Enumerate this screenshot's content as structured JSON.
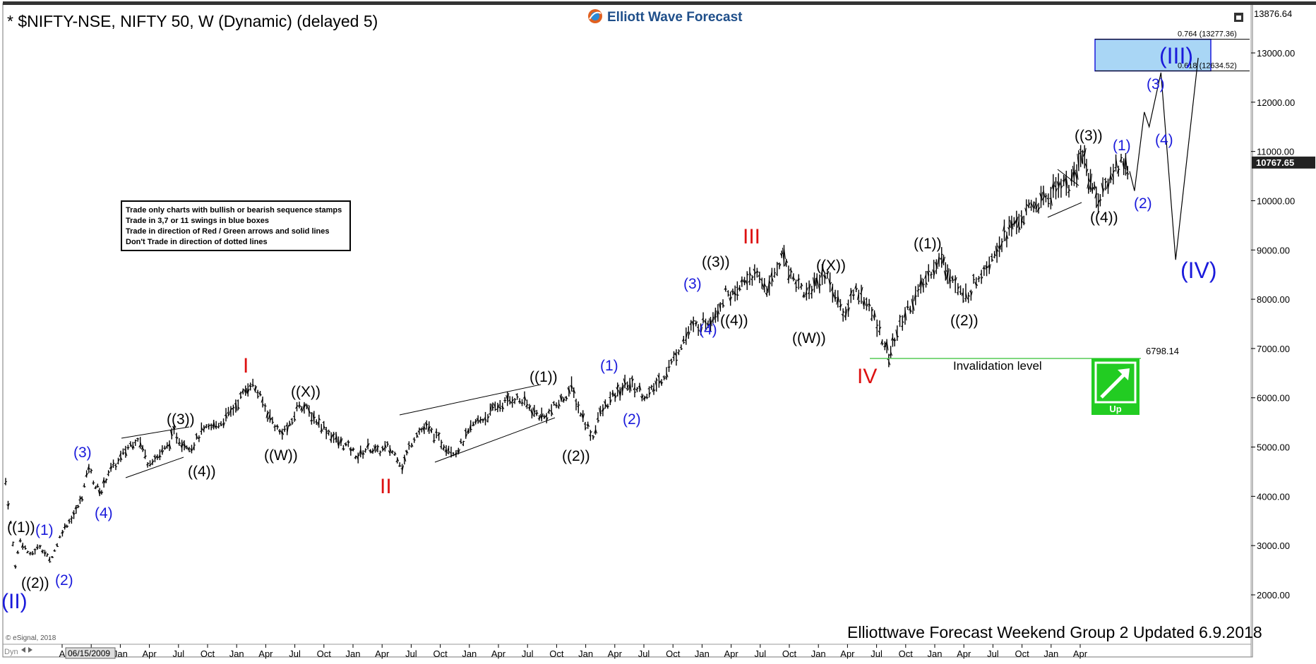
{
  "header": {
    "title": "* $NIFTY-NSE, NIFTY 50, W (Dynamic) (delayed 5)",
    "logo_text": "Elliott Wave Forecast",
    "top_price": "13876.64"
  },
  "legend_box": {
    "lines": [
      "Trade only charts with bullish or bearish sequence stamps",
      "Trade in 3,7 or 11 swings in blue boxes",
      "Trade in direction of Red / Green arrows and solid lines",
      "Don't Trade in direction of dotted lines"
    ]
  },
  "footer": {
    "update_text": "Elliottwave Forecast Weekend Group 2 Updated 6.9.2018",
    "copyright": "© eSignal, 2018",
    "cursor_date": "06/15/2009",
    "dyn": "Dyn"
  },
  "target_box": {
    "upper_label": "0.764 (13277.36)",
    "lower_label": "0.618 (12634.52)",
    "upper": 13277.36,
    "lower": 12634.52
  },
  "invalidation": {
    "value_label": "6798.14",
    "value": 6798.14,
    "text": "Invalidation level"
  },
  "up_arrow": {
    "label": "Up",
    "color": "#22cc22"
  },
  "last_price": {
    "label": "10767.65",
    "value": 10767.65
  },
  "colors": {
    "blue_wave": "#1a1adb",
    "red_wave": "#dd1111",
    "target_fill": "#a9d6f5",
    "invalidation_line": "#55cc55"
  },
  "chart_data": {
    "type": "line",
    "ylim": [
      1500,
      13876.64
    ],
    "yticks": [
      2000,
      3000,
      4000,
      5000,
      6000,
      7000,
      8000,
      9000,
      10000,
      11000,
      12000,
      13000
    ],
    "ytick_labels": [
      "2000.00",
      "3000.00",
      "4000.00",
      "5000.00",
      "6000.00",
      "7000.00",
      "8000.00",
      "9000.00",
      "10000.00",
      "11000.00",
      "12000.00",
      "13000.00"
    ],
    "x_ticks": [
      "A",
      "Oct",
      "Jan",
      "Apr",
      "Jul",
      "Oct",
      "Jan",
      "Apr",
      "Jul",
      "Oct",
      "Jan",
      "Apr",
      "Jul",
      "Oct",
      "Jan",
      "Apr",
      "Jul",
      "Oct",
      "Jan",
      "Apr",
      "Jul",
      "Oct",
      "Jan",
      "Apr",
      "Jul",
      "Oct",
      "Jan",
      "Apr",
      "Jul",
      "Oct",
      "Jan",
      "Apr",
      "Jul",
      "Oct",
      "Jan",
      "Apr"
    ],
    "price_path": [
      [
        2009.0,
        4300
      ],
      [
        2009.1,
        2600
      ],
      [
        2009.15,
        3100
      ],
      [
        2009.25,
        2800
      ],
      [
        2009.35,
        3000
      ],
      [
        2009.45,
        2700
      ],
      [
        2009.5,
        2900
      ],
      [
        2009.58,
        3300
      ],
      [
        2009.65,
        3500
      ],
      [
        2009.72,
        3700
      ],
      [
        2009.78,
        4000
      ],
      [
        2009.85,
        4600
      ],
      [
        2009.92,
        4200
      ],
      [
        2009.98,
        4100
      ],
      [
        2010.05,
        4500
      ],
      [
        2010.15,
        4700
      ],
      [
        2010.25,
        5000
      ],
      [
        2010.35,
        5200
      ],
      [
        2010.45,
        4700
      ],
      [
        2010.55,
        4800
      ],
      [
        2010.65,
        5000
      ],
      [
        2010.72,
        5300
      ],
      [
        2010.8,
        5100
      ],
      [
        2010.9,
        5000
      ],
      [
        2011.0,
        5300
      ],
      [
        2011.1,
        5400
      ],
      [
        2011.2,
        5500
      ],
      [
        2011.3,
        5700
      ],
      [
        2011.4,
        6000
      ],
      [
        2011.5,
        6300
      ],
      [
        2011.55,
        6200
      ],
      [
        2011.6,
        6000
      ],
      [
        2011.7,
        5600
      ],
      [
        2011.8,
        5300
      ],
      [
        2011.9,
        5400
      ],
      [
        2012.0,
        5900
      ],
      [
        2012.1,
        5700
      ],
      [
        2012.2,
        5500
      ],
      [
        2012.3,
        5300
      ],
      [
        2012.4,
        5100
      ],
      [
        2012.5,
        5000
      ],
      [
        2012.6,
        4800
      ],
      [
        2012.7,
        5000
      ],
      [
        2012.8,
        4900
      ],
      [
        2012.9,
        5000
      ],
      [
        2013.0,
        4800
      ],
      [
        2013.05,
        4600
      ],
      [
        2013.12,
        5000
      ],
      [
        2013.2,
        5300
      ],
      [
        2013.3,
        5400
      ],
      [
        2013.4,
        5200
      ],
      [
        2013.5,
        5000
      ],
      [
        2013.6,
        4900
      ],
      [
        2013.7,
        5200
      ],
      [
        2013.8,
        5500
      ],
      [
        2013.9,
        5600
      ],
      [
        2014.0,
        5800
      ],
      [
        2014.1,
        5900
      ],
      [
        2014.2,
        6000
      ],
      [
        2014.3,
        5900
      ],
      [
        2014.4,
        5700
      ],
      [
        2014.5,
        5600
      ],
      [
        2014.6,
        5800
      ],
      [
        2014.7,
        6000
      ],
      [
        2014.78,
        6200
      ],
      [
        2014.85,
        5800
      ],
      [
        2014.92,
        5500
      ],
      [
        2015.0,
        5200
      ],
      [
        2015.05,
        5600
      ],
      [
        2015.15,
        5900
      ],
      [
        2015.25,
        6100
      ],
      [
        2015.35,
        6300
      ],
      [
        2015.45,
        6200
      ],
      [
        2015.55,
        6000
      ],
      [
        2015.62,
        6200
      ],
      [
        2015.7,
        6400
      ],
      [
        2015.8,
        6700
      ],
      [
        2015.9,
        7100
      ],
      [
        2016.0,
        7400
      ],
      [
        2016.1,
        7500
      ],
      [
        2016.2,
        7600
      ],
      [
        2016.3,
        7900
      ],
      [
        2016.38,
        8200
      ],
      [
        2016.45,
        8000
      ],
      [
        2016.52,
        8300
      ],
      [
        2016.6,
        8500
      ],
      [
        2016.7,
        8400
      ],
      [
        2016.8,
        8200
      ],
      [
        2016.88,
        8700
      ],
      [
        2016.95,
        8900
      ],
      [
        2017.02,
        8500
      ],
      [
        2017.1,
        8300
      ],
      [
        2017.18,
        8100
      ],
      [
        2017.26,
        8300
      ],
      [
        2017.34,
        8500
      ],
      [
        2017.42,
        8400
      ],
      [
        2017.5,
        7900
      ],
      [
        2017.58,
        7700
      ],
      [
        2017.66,
        8200
      ],
      [
        2017.74,
        8100
      ],
      [
        2017.82,
        7800
      ],
      [
        2017.9,
        7500
      ],
      [
        2017.98,
        7100
      ],
      [
        2018.02,
        6830
      ],
      [
        2018.08,
        7200
      ],
      [
        2018.16,
        7600
      ],
      [
        2018.24,
        7900
      ],
      [
        2018.32,
        8100
      ],
      [
        2018.4,
        8400
      ],
      [
        2018.48,
        8700
      ],
      [
        2018.56,
        8800
      ],
      [
        2018.62,
        8600
      ],
      [
        2018.7,
        8300
      ],
      [
        2018.78,
        8000
      ],
      [
        2018.86,
        8200
      ],
      [
        2018.94,
        8500
      ],
      [
        2019.02,
        8700
      ],
      [
        2019.1,
        9000
      ],
      [
        2019.2,
        9300
      ],
      [
        2019.3,
        9500
      ],
      [
        2019.4,
        9700
      ],
      [
        2019.5,
        9900
      ],
      [
        2019.6,
        10000
      ],
      [
        2019.7,
        10200
      ],
      [
        2019.78,
        10400
      ],
      [
        2019.86,
        10300
      ],
      [
        2019.94,
        10600
      ],
      [
        2020.0,
        11000
      ],
      [
        2020.06,
        10500
      ],
      [
        2020.12,
        10200
      ],
      [
        2020.18,
        10000
      ],
      [
        2020.26,
        10400
      ],
      [
        2020.34,
        10700
      ],
      [
        2020.42,
        10800
      ],
      [
        2020.48,
        10600
      ]
    ],
    "projection": [
      [
        2020.48,
        10600
      ],
      [
        2020.53,
        10200
      ],
      [
        2020.63,
        11800
      ],
      [
        2020.68,
        11500
      ],
      [
        2020.8,
        12600
      ],
      [
        2020.95,
        8800
      ],
      [
        2021.18,
        12900
      ]
    ]
  }
}
